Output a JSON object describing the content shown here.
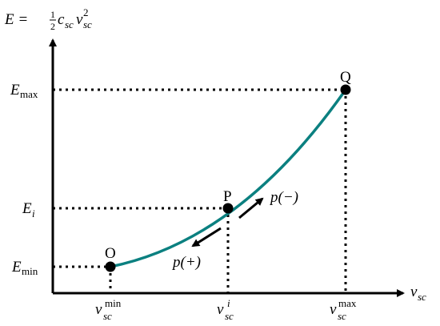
{
  "colors": {
    "curve": "#0b8080",
    "axis": "#000000",
    "point": "#000000"
  },
  "axis_labels": {
    "y_main": "E = ",
    "y_frac_num": "1",
    "y_frac_den": "2",
    "y_c": "c",
    "y_c_sub": "sc",
    "y_v": "v",
    "y_v_sub": "sc",
    "y_v_sup": "2",
    "x_main": "v",
    "x_sub": "sc"
  },
  "y_ticks": {
    "emax_main": "E",
    "emax_sub": "max",
    "ei_main": "E",
    "ei_sub": "i",
    "emin_main": "E",
    "emin_sub": "min"
  },
  "x_ticks": {
    "min_main": "v",
    "min_sub": "sc",
    "min_sup": "min",
    "i_main": "v",
    "i_sub": "sc",
    "i_sup": "i",
    "max_main": "v",
    "max_sub": "sc",
    "max_sup": "max"
  },
  "points": {
    "o": "O",
    "p": "P",
    "q": "Q"
  },
  "arrows": {
    "up_label": "p(−)",
    "down_label": "p(+)"
  }
}
